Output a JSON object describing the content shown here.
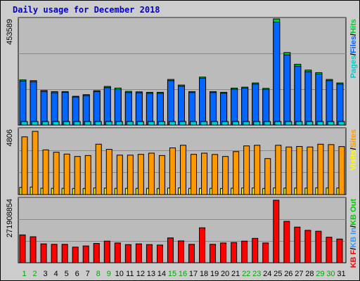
{
  "title": "Daily usage for December 2018",
  "colors": {
    "pages": "#00cccc",
    "files": "#0066ff",
    "hits": "#00cc33",
    "visits": "#ffff00",
    "sites": "#ff9900",
    "kbf": "#ff0000",
    "kbin": "#3399ff",
    "kbout": "#00cc00",
    "weekend": "#00aa00",
    "weekday": "#000000"
  },
  "chart_data": [
    {
      "type": "bar",
      "panel": "top",
      "y_max_label": "453589",
      "ylim": [
        0,
        453589
      ],
      "legend": [
        {
          "text": "Pages",
          "color": "#00cccc"
        },
        {
          "text": "/",
          "color": "#000000"
        },
        {
          "text": "Files",
          "color": "#0066ff"
        },
        {
          "text": "/",
          "color": "#000000"
        },
        {
          "text": "Hits",
          "color": "#00cc33"
        }
      ],
      "categories": [
        "1",
        "2",
        "3",
        "4",
        "5",
        "6",
        "7",
        "8",
        "9",
        "10",
        "11",
        "12",
        "13",
        "14",
        "15",
        "16",
        "17",
        "18",
        "19",
        "20",
        "21",
        "22",
        "23",
        "24",
        "25",
        "26",
        "27",
        "28",
        "29",
        "30",
        "31"
      ],
      "series": [
        {
          "name": "Hits",
          "values": [
            193000,
            190000,
            148000,
            143000,
            143000,
            123000,
            130000,
            147000,
            165000,
            158000,
            144000,
            142000,
            140000,
            140000,
            195000,
            171000,
            143000,
            205000,
            143000,
            140000,
            158000,
            162000,
            180000,
            157000,
            453589,
            310000,
            260000,
            235000,
            224000,
            195000,
            180000
          ]
        },
        {
          "name": "Files",
          "values": [
            188000,
            185000,
            143000,
            138000,
            140000,
            120000,
            126000,
            143000,
            160000,
            152000,
            139000,
            138000,
            136000,
            136000,
            190000,
            166000,
            139000,
            200000,
            139000,
            136000,
            153000,
            158000,
            175000,
            152000,
            440000,
            300000,
            252000,
            228000,
            218000,
            190000,
            175000
          ]
        },
        {
          "name": "Pages",
          "values": [
            14000,
            14000,
            12000,
            12000,
            12000,
            11000,
            11000,
            12000,
            13000,
            13000,
            12000,
            12000,
            12000,
            12000,
            14000,
            13000,
            12000,
            15000,
            12000,
            12000,
            13000,
            13000,
            14000,
            13000,
            20000,
            17000,
            16000,
            15000,
            15000,
            14000,
            14000
          ]
        }
      ]
    },
    {
      "type": "bar",
      "panel": "middle",
      "y_max_label": "4806",
      "ylim": [
        0,
        4806
      ],
      "legend": [
        {
          "text": "Visits",
          "color": "#ffff00"
        },
        {
          "text": "/",
          "color": "#000000"
        },
        {
          "text": "Sites",
          "color": "#ff9900"
        }
      ],
      "categories": [
        "1",
        "2",
        "3",
        "4",
        "5",
        "6",
        "7",
        "8",
        "9",
        "10",
        "11",
        "12",
        "13",
        "14",
        "15",
        "16",
        "17",
        "18",
        "19",
        "20",
        "21",
        "22",
        "23",
        "24",
        "25",
        "26",
        "27",
        "28",
        "29",
        "30",
        "31"
      ],
      "series": [
        {
          "name": "Sites",
          "values": [
            4390,
            4806,
            3400,
            3220,
            3080,
            2900,
            2970,
            3830,
            3440,
            3000,
            3000,
            3060,
            3150,
            2970,
            3550,
            3750,
            3060,
            3150,
            3050,
            2900,
            3270,
            3700,
            3750,
            2740,
            3750,
            3620,
            3660,
            3620,
            3830,
            3800,
            3650
          ]
        },
        {
          "name": "Visits",
          "values": [
            330,
            360,
            270,
            260,
            260,
            250,
            250,
            290,
            280,
            260,
            260,
            260,
            260,
            250,
            280,
            290,
            260,
            260,
            260,
            250,
            270,
            290,
            290,
            250,
            290,
            280,
            280,
            280,
            300,
            290,
            290
          ]
        }
      ]
    },
    {
      "type": "bar",
      "panel": "bottom",
      "y_max_label": "271908854",
      "ylim": [
        0,
        271908854
      ],
      "legend": [
        {
          "text": "KB F",
          "color": "#ff0000"
        },
        {
          "text": "/",
          "color": "#000000"
        },
        {
          "text": "KB In",
          "color": "#3399ff"
        },
        {
          "text": "/",
          "color": "#000000"
        },
        {
          "text": "KB Out",
          "color": "#00cc00"
        }
      ],
      "categories": [
        "1",
        "2",
        "3",
        "4",
        "5",
        "6",
        "7",
        "8",
        "9",
        "10",
        "11",
        "12",
        "13",
        "14",
        "15",
        "16",
        "17",
        "18",
        "19",
        "20",
        "21",
        "22",
        "23",
        "24",
        "25",
        "26",
        "27",
        "28",
        "29",
        "30",
        "31"
      ],
      "series": [
        {
          "name": "KB F",
          "values": [
            121000000,
            113000000,
            82000000,
            80000000,
            80000000,
            68000000,
            73000000,
            84000000,
            94000000,
            86000000,
            79000000,
            82000000,
            79000000,
            77000000,
            108000000,
            95000000,
            80000000,
            152000000,
            80000000,
            86000000,
            88000000,
            94000000,
            106000000,
            86000000,
            271908854,
            180000000,
            155000000,
            141000000,
            137000000,
            111000000,
            103000000
          ]
        }
      ]
    }
  ],
  "x_labels": [
    {
      "day": "1",
      "weekend": true
    },
    {
      "day": "2",
      "weekend": true
    },
    {
      "day": "3",
      "weekend": false
    },
    {
      "day": "4",
      "weekend": false
    },
    {
      "day": "5",
      "weekend": false
    },
    {
      "day": "6",
      "weekend": false
    },
    {
      "day": "7",
      "weekend": false
    },
    {
      "day": "8",
      "weekend": true
    },
    {
      "day": "9",
      "weekend": true
    },
    {
      "day": "10",
      "weekend": false
    },
    {
      "day": "11",
      "weekend": false
    },
    {
      "day": "12",
      "weekend": false
    },
    {
      "day": "13",
      "weekend": false
    },
    {
      "day": "14",
      "weekend": false
    },
    {
      "day": "15",
      "weekend": true
    },
    {
      "day": "16",
      "weekend": true
    },
    {
      "day": "17",
      "weekend": false
    },
    {
      "day": "18",
      "weekend": false
    },
    {
      "day": "19",
      "weekend": false
    },
    {
      "day": "20",
      "weekend": false
    },
    {
      "day": "21",
      "weekend": false
    },
    {
      "day": "22",
      "weekend": true
    },
    {
      "day": "23",
      "weekend": true
    },
    {
      "day": "24",
      "weekend": false
    },
    {
      "day": "25",
      "weekend": false
    },
    {
      "day": "26",
      "weekend": false
    },
    {
      "day": "27",
      "weekend": false
    },
    {
      "day": "28",
      "weekend": false
    },
    {
      "day": "29",
      "weekend": true
    },
    {
      "day": "30",
      "weekend": true
    },
    {
      "day": "31",
      "weekend": false
    }
  ]
}
